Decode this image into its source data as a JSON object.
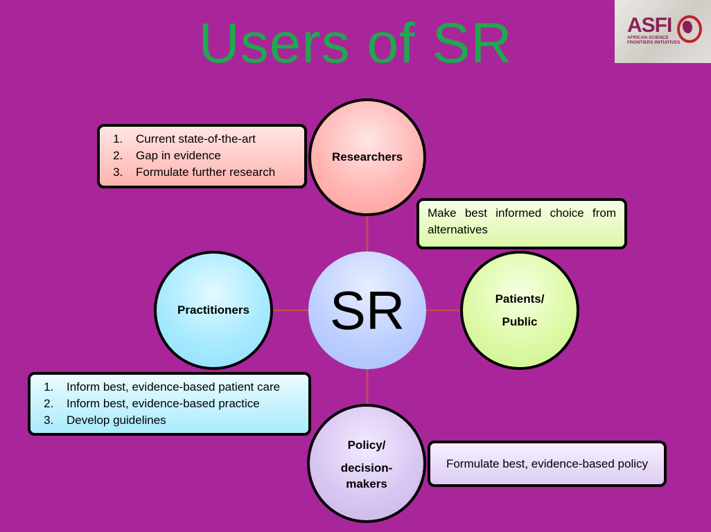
{
  "title": "Users of SR",
  "logo": {
    "name": "ASFI",
    "subtitle": "AFRICAN SCIENCE FRONTIERS INITIATIVES"
  },
  "center": {
    "label": "SR"
  },
  "nodes": {
    "researchers": {
      "label": "Researchers"
    },
    "practitioners": {
      "label": "Practitioners"
    },
    "patients": {
      "line1": "Patients/",
      "line2": "Public"
    },
    "policy": {
      "line1": "Policy/",
      "line2": "decision-",
      "line3": "makers"
    }
  },
  "boxes": {
    "researchers": {
      "items": [
        "Current state-of-the-art",
        "Gap in evidence",
        "Formulate further research"
      ]
    },
    "patients": {
      "text": "Make best informed choice from alternatives"
    },
    "practitioners": {
      "items": [
        "Inform best, evidence-based patient care",
        "Inform best, evidence-based practice",
        "Develop guidelines"
      ]
    },
    "policy": {
      "text": "Formulate best, evidence-based policy"
    }
  },
  "colors": {
    "background": "#a8269a",
    "title": "#1fa94f",
    "connector": "#c0504d"
  }
}
